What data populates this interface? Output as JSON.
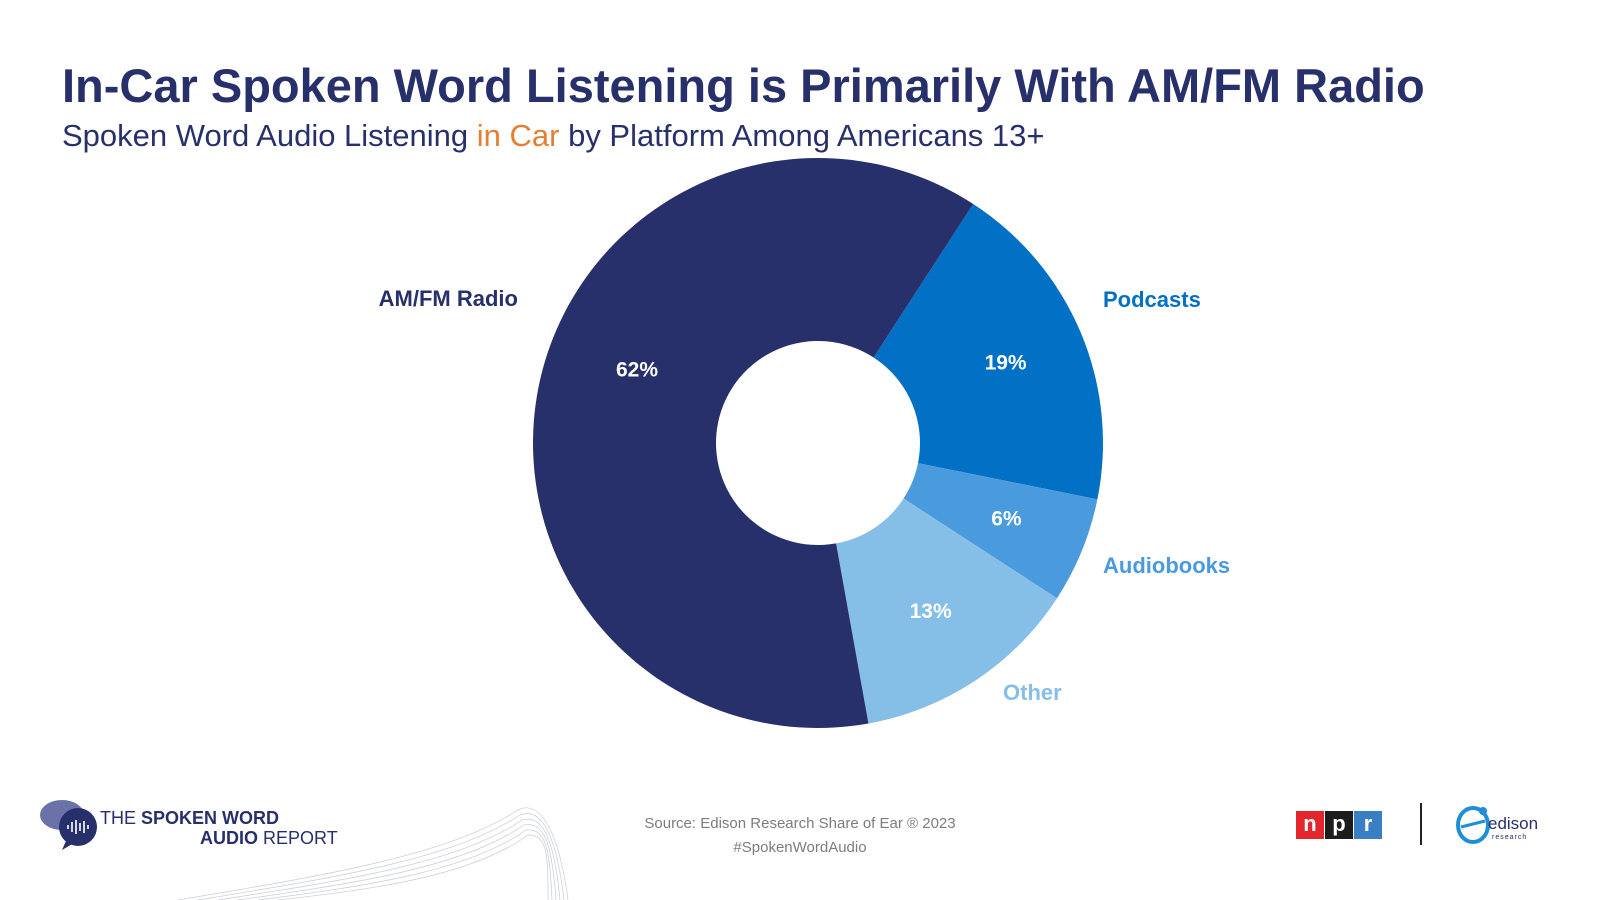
{
  "chart_data": {
    "type": "pie",
    "title": "In-Car Spoken Word Listening is Primarily With AM/FM Radio",
    "subtitle_prefix": "Spoken Word Audio Listening ",
    "subtitle_highlight": "in Car",
    "subtitle_suffix": " by Platform Among Americans 13+",
    "slices": [
      {
        "label": "AM/FM Radio",
        "value": 62,
        "value_label": "62%",
        "color": "#27306b"
      },
      {
        "label": "Podcasts",
        "value": 19,
        "value_label": "19%",
        "color": "#0270c4"
      },
      {
        "label": "Audiobooks",
        "value": 6,
        "value_label": "6%",
        "color": "#4a9ade"
      },
      {
        "label": "Other",
        "value": 13,
        "value_label": "13%",
        "color": "#85bfe8"
      }
    ],
    "order": "counterclockwise from top-right"
  },
  "footer": {
    "source": "Source: Edison Research Share of Ear ® 2023",
    "hashtag": "#SpokenWordAudio",
    "report_the": "THE",
    "report_spoken_word": "SPOKEN WORD",
    "report_audio": "AUDIO",
    "report_report": "REPORT",
    "npr_letters": [
      "n",
      "p",
      "r"
    ],
    "edison_name": "edison",
    "edison_sub": "research"
  },
  "colors": {
    "npr_n": "#e3262c",
    "npr_p": "#1c1c1c",
    "npr_r": "#3a7fc4",
    "highlight": "#e67e30"
  }
}
